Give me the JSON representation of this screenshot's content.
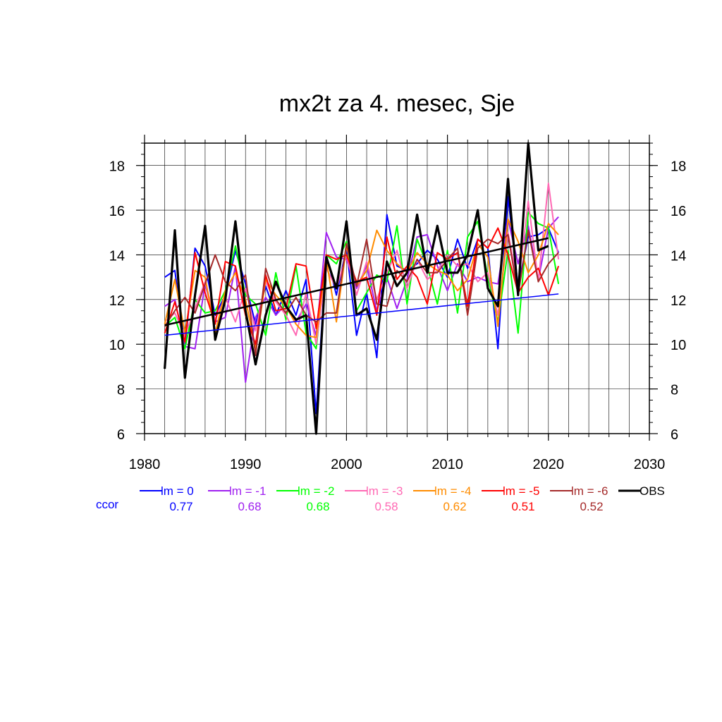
{
  "chart_data": {
    "type": "line",
    "title": "mx2t za 4. mesec, Sje",
    "xlabel": "",
    "ylabel": "",
    "xlim": [
      1980,
      2030
    ],
    "ylim": [
      6,
      19
    ],
    "x_ticks": [
      1980,
      1990,
      2000,
      2010,
      2020,
      2030
    ],
    "y_ticks": [
      6,
      8,
      10,
      12,
      14,
      16,
      18
    ],
    "grid": true,
    "legend_position": "bottom",
    "ccor_label": "ccor",
    "series": [
      {
        "name": "lm = 0",
        "color": "#0000ff",
        "ccor": "0.77",
        "x": [
          1982,
          1983,
          1984,
          1985,
          1986,
          1987,
          1988,
          1989,
          1990,
          1991,
          1992,
          1993,
          1994,
          1995,
          1996,
          1997,
          1998,
          1999,
          2000,
          2001,
          2002,
          2003,
          2004,
          2005,
          2006,
          2007,
          2008,
          2009,
          2010,
          2011,
          2012,
          2013,
          2014,
          2015,
          2016,
          2017,
          2018,
          2019,
          2020,
          2021
        ],
        "y": [
          13.0,
          13.3,
          9.9,
          14.3,
          13.5,
          11.3,
          12.2,
          14.2,
          12.7,
          10.9,
          12.6,
          11.3,
          12.4,
          11.3,
          12.9,
          6.9,
          14.0,
          12.2,
          14.3,
          10.4,
          12.3,
          9.4,
          15.8,
          13.5,
          13.3,
          13.6,
          14.2,
          13.8,
          13.0,
          14.7,
          13.4,
          14.7,
          14.3,
          9.8,
          16.6,
          12.6,
          14.8,
          14.9,
          15.2,
          14.1
        ]
      },
      {
        "name": "lm = -1",
        "color": "#a020f0",
        "ccor": "0.68",
        "x": [
          1982,
          1983,
          1984,
          1985,
          1986,
          1987,
          1988,
          1989,
          1990,
          1991,
          1992,
          1993,
          1994,
          1995,
          1996,
          1997,
          1998,
          1999,
          2000,
          2001,
          2002,
          2003,
          2004,
          2005,
          2006,
          2007,
          2008,
          2009,
          2010,
          2011,
          2012,
          2013,
          2014,
          2015,
          2016,
          2017,
          2018,
          2019,
          2020,
          2021
        ],
        "y": [
          11.7,
          12.0,
          9.9,
          9.8,
          12.7,
          11.0,
          11.2,
          13.5,
          8.3,
          11.2,
          12.1,
          11.3,
          11.8,
          11.0,
          11.8,
          10.4,
          15.0,
          13.9,
          13.8,
          12.5,
          13.5,
          11.5,
          13.0,
          11.6,
          12.9,
          14.8,
          14.9,
          13.5,
          12.4,
          13.6,
          12.8,
          13.0,
          12.8,
          12.7,
          15.6,
          13.6,
          15.3,
          12.9,
          15.2,
          15.7
        ]
      },
      {
        "name": "lm = -2",
        "color": "#00ff00",
        "ccor": "0.68",
        "x": [
          1982,
          1983,
          1984,
          1985,
          1986,
          1987,
          1988,
          1989,
          1990,
          1991,
          1992,
          1993,
          1994,
          1995,
          1996,
          1997,
          1998,
          1999,
          2000,
          2001,
          2002,
          2003,
          2004,
          2005,
          2006,
          2007,
          2008,
          2009,
          2010,
          2011,
          2012,
          2013,
          2014,
          2015,
          2016,
          2017,
          2018,
          2019,
          2020,
          2021
        ],
        "y": [
          10.8,
          11.2,
          9.8,
          12.0,
          11.4,
          11.5,
          12.4,
          14.4,
          12.2,
          11.8,
          10.4,
          13.2,
          11.1,
          13.5,
          10.5,
          9.8,
          14.0,
          13.6,
          14.6,
          11.5,
          12.3,
          13.1,
          12.8,
          15.3,
          11.8,
          14.7,
          13.5,
          11.8,
          14.2,
          11.4,
          14.8,
          15.5,
          13.0,
          11.0,
          14.2,
          10.5,
          15.9,
          15.4,
          15.2,
          12.7
        ]
      },
      {
        "name": "lm = -3",
        "color": "#ff69b4",
        "ccor": "0.58",
        "x": [
          1982,
          1983,
          1984,
          1985,
          1986,
          1987,
          1988,
          1989,
          1990,
          1991,
          1992,
          1993,
          1994,
          1995,
          1996,
          1997,
          1998,
          1999,
          2000,
          2001,
          2002,
          2003,
          2004,
          2005,
          2006,
          2007,
          2008,
          2009,
          2010,
          2011,
          2012,
          2013,
          2014,
          2015,
          2016,
          2017,
          2018,
          2019,
          2020,
          2021
        ],
        "y": [
          11.0,
          11.4,
          10.4,
          11.6,
          12.8,
          11.1,
          12.1,
          11.0,
          12.5,
          10.6,
          12.8,
          11.9,
          11.3,
          10.4,
          12.3,
          10.0,
          13.4,
          12.5,
          14.0,
          12.2,
          13.7,
          12.0,
          13.2,
          14.2,
          12.5,
          13.8,
          12.9,
          13.3,
          14.0,
          13.5,
          13.6,
          12.8,
          13.2,
          11.3,
          15.0,
          12.6,
          16.4,
          12.8,
          17.2,
          13.8
        ]
      },
      {
        "name": "lm = -4",
        "color": "#ff8c00",
        "ccor": "0.62",
        "x": [
          1982,
          1983,
          1984,
          1985,
          1986,
          1987,
          1988,
          1989,
          1990,
          1991,
          1992,
          1993,
          1994,
          1995,
          1996,
          1997,
          1998,
          1999,
          2000,
          2001,
          2002,
          2003,
          2004,
          2005,
          2006,
          2007,
          2008,
          2009,
          2010,
          2011,
          2012,
          2013,
          2014,
          2015,
          2016,
          2017,
          2018,
          2019,
          2020,
          2021
        ],
        "y": [
          10.9,
          12.9,
          10.5,
          13.3,
          13.0,
          10.5,
          12.4,
          13.2,
          12.0,
          9.8,
          12.9,
          12.2,
          11.7,
          10.9,
          10.4,
          10.3,
          13.8,
          11.0,
          14.4,
          12.6,
          13.3,
          15.1,
          14.2,
          13.6,
          13.2,
          14.1,
          13.6,
          13.3,
          13.1,
          12.4,
          12.9,
          14.5,
          13.9,
          10.8,
          15.6,
          14.6,
          13.2,
          14.0,
          15.4,
          14.9
        ]
      },
      {
        "name": "lm = -5",
        "color": "#ff0000",
        "ccor": "0.51",
        "x": [
          1982,
          1983,
          1984,
          1985,
          1986,
          1987,
          1988,
          1989,
          1990,
          1991,
          1992,
          1993,
          1994,
          1995,
          1996,
          1997,
          1998,
          1999,
          2000,
          2001,
          2002,
          2003,
          2004,
          2005,
          2006,
          2007,
          2008,
          2009,
          2010,
          2011,
          2012,
          2013,
          2014,
          2015,
          2016,
          2017,
          2018,
          2019,
          2020,
          2021
        ],
        "y": [
          10.5,
          11.9,
          10.1,
          14.1,
          12.3,
          10.9,
          13.7,
          13.5,
          11.3,
          10.0,
          13.1,
          11.5,
          11.6,
          13.6,
          13.5,
          10.7,
          14.0,
          13.8,
          14.0,
          12.8,
          13.0,
          11.3,
          14.8,
          12.9,
          13.5,
          13.0,
          11.8,
          14.1,
          13.8,
          14.1,
          11.7,
          14.7,
          14.3,
          15.2,
          14.0,
          12.3,
          13.0,
          13.4,
          12.2,
          13.5
        ]
      },
      {
        "name": "lm = -6",
        "color": "#a52a2a",
        "ccor": "0.52",
        "x": [
          1982,
          1983,
          1984,
          1985,
          1986,
          1987,
          1988,
          1989,
          1990,
          1991,
          1992,
          1993,
          1994,
          1995,
          1996,
          1997,
          1998,
          1999,
          2000,
          2001,
          2002,
          2003,
          2004,
          2005,
          2006,
          2007,
          2008,
          2009,
          2010,
          2011,
          2012,
          2013,
          2014,
          2015,
          2016,
          2017,
          2018,
          2019,
          2020,
          2021
        ],
        "y": [
          10.8,
          11.5,
          12.1,
          11.4,
          12.7,
          14.0,
          12.8,
          12.4,
          13.1,
          9.5,
          13.4,
          12.0,
          11.4,
          12.1,
          11.3,
          11.0,
          11.4,
          11.4,
          14.5,
          12.6,
          14.7,
          11.8,
          11.7,
          13.3,
          12.8,
          13.8,
          13.2,
          13.2,
          13.8,
          14.3,
          11.3,
          14.3,
          14.7,
          14.5,
          14.9,
          12.2,
          15.1,
          12.8,
          13.6,
          14.1
        ]
      },
      {
        "name": "OBS",
        "color": "#000000",
        "ccor": "",
        "x": [
          1982,
          1983,
          1984,
          1985,
          1986,
          1987,
          1988,
          1989,
          1990,
          1991,
          1992,
          1993,
          1994,
          1995,
          1996,
          1997,
          1998,
          1999,
          2000,
          2001,
          2002,
          2003,
          2004,
          2005,
          2006,
          2007,
          2008,
          2009,
          2010,
          2011,
          2012,
          2013,
          2014,
          2015,
          2016,
          2017,
          2018,
          2019,
          2020
        ],
        "y": [
          8.9,
          15.1,
          8.5,
          12.2,
          15.3,
          10.2,
          12.0,
          15.5,
          11.5,
          9.1,
          11.3,
          12.8,
          11.7,
          11.1,
          11.3,
          6.0,
          13.9,
          12.5,
          15.5,
          11.3,
          11.6,
          10.2,
          13.7,
          12.6,
          13.2,
          15.8,
          13.2,
          15.3,
          13.2,
          13.2,
          14.0,
          16.0,
          12.5,
          11.7,
          17.4,
          12.2,
          19.0,
          14.2,
          14.4
        ]
      }
    ],
    "trend_lines": [
      {
        "name": "lm = 0 trend",
        "color": "#0000ff",
        "x": [
          1982,
          2021
        ],
        "y": [
          10.4,
          12.25
        ]
      },
      {
        "name": "OBS trend",
        "color": "#000000",
        "x": [
          1982,
          2020
        ],
        "y": [
          10.85,
          14.75
        ]
      }
    ]
  }
}
